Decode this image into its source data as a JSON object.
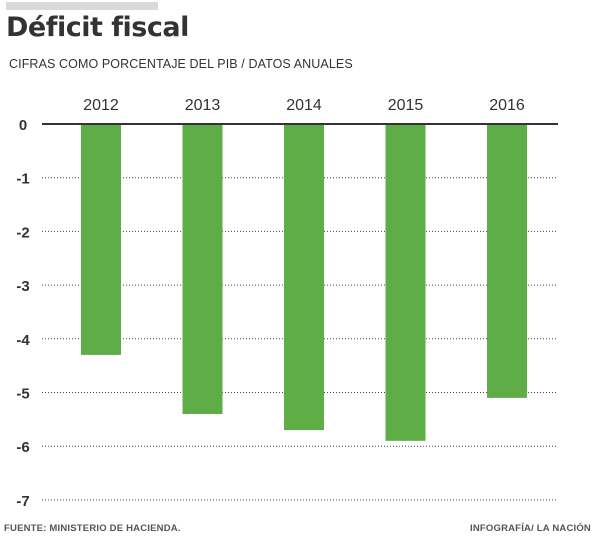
{
  "header": {
    "title": "Déficit fiscal",
    "subtitle": "CIFRAS COMO PORCENTAJE DEL PIB  /  DATOS ANUALES"
  },
  "footer": {
    "source": "FUENTE: MINISTERIO DE HACIENDA.",
    "credit": "INFOGRAFÍA/ LA NACIÓN"
  },
  "chart_data": {
    "type": "bar",
    "categories": [
      "2012",
      "2013",
      "2014",
      "2015",
      "2016"
    ],
    "values": [
      -4.3,
      -5.4,
      -5.7,
      -5.9,
      -5.1
    ],
    "ylim": [
      -7,
      0
    ],
    "yticks": [
      "0",
      "-1",
      "-2",
      "-3",
      "-4",
      "-5",
      "-6",
      "-7"
    ],
    "ytick_values": [
      0,
      -1,
      -2,
      -3,
      -4,
      -5,
      -6,
      -7
    ],
    "grid": true,
    "category_axis_position": "top",
    "bar_color": "#5fad46",
    "text_color": "#333333"
  }
}
